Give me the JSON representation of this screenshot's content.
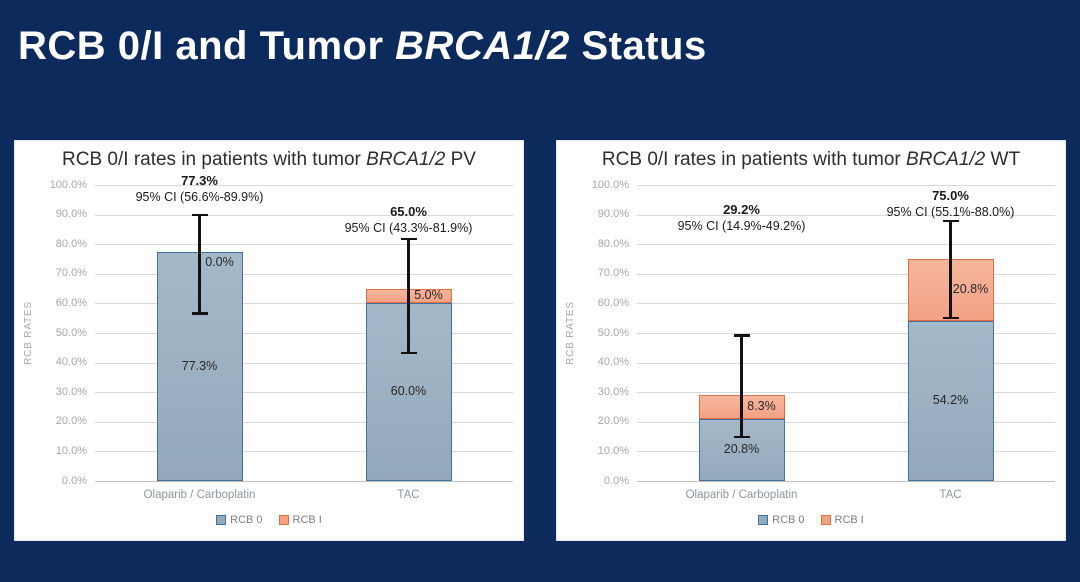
{
  "slide": {
    "title": {
      "prefix": "RCB 0/I and Tumor ",
      "italic": "BRCA1/2",
      "suffix": " Status"
    },
    "background_color": "#0d2a5c",
    "title_color": "#ffffff"
  },
  "chart_data": [
    {
      "type": "bar",
      "stacked": true,
      "title": {
        "prefix": "RCB 0/I rates in patients with tumor ",
        "italic": "BRCA1/2",
        "suffix": " PV"
      },
      "ylabel": "RCB RATES",
      "ylim": [
        0,
        100
      ],
      "yticks": [
        "0.0%",
        "10.0%",
        "20.0%",
        "30.0%",
        "40.0%",
        "50.0%",
        "60.0%",
        "70.0%",
        "80.0%",
        "90.0%",
        "100.0%"
      ],
      "grid": true,
      "legend_position": "bottom",
      "categories": [
        "Olaparib / Carboplatin",
        "TAC"
      ],
      "series": [
        {
          "name": "RCB 0",
          "values": [
            77.3,
            60.0
          ],
          "labels": [
            "77.3%",
            "60.0%"
          ],
          "fill_top": "#a5b8c9",
          "fill": "#93a9bc",
          "border": "#41719c"
        },
        {
          "name": "RCB I",
          "values": [
            0.0,
            5.0
          ],
          "labels": [
            "0.0%",
            "5.0%"
          ],
          "fill_top": "#f8b69e",
          "fill": "#f2a184",
          "border": "#e2703d"
        }
      ],
      "totals": [
        {
          "value": "77.3%",
          "ci": "95% CI (56.6%-89.9%)",
          "note_y": 101.3
        },
        {
          "value": "65.0%",
          "ci": "95% CI (43.3%-81.9%)",
          "note_y": 90.8
        }
      ],
      "error_bars": [
        {
          "low": 56.6,
          "high": 89.9
        },
        {
          "low": 43.3,
          "high": 81.9
        }
      ]
    },
    {
      "type": "bar",
      "stacked": true,
      "title": {
        "prefix": "RCB 0/I rates in patients with tumor ",
        "italic": "BRCA1/2",
        "suffix": " WT"
      },
      "ylabel": "RCB RATES",
      "ylim": [
        0,
        100
      ],
      "yticks": [
        "0.0%",
        "10.0%",
        "20.0%",
        "30.0%",
        "40.0%",
        "50.0%",
        "60.0%",
        "70.0%",
        "80.0%",
        "90.0%",
        "100.0%"
      ],
      "grid": true,
      "legend_position": "bottom",
      "categories": [
        "Olaparib / Carboplatin",
        "TAC"
      ],
      "series": [
        {
          "name": "RCB 0",
          "values": [
            20.8,
            54.2
          ],
          "labels": [
            "20.8%",
            "54.2%"
          ],
          "fill_top": "#a5b8c9",
          "fill": "#93a9bc",
          "border": "#41719c"
        },
        {
          "name": "RCB I",
          "values": [
            8.3,
            20.8
          ],
          "labels": [
            "8.3%",
            "20.8%"
          ],
          "fill_top": "#f8b69e",
          "fill": "#f2a184",
          "border": "#e2703d"
        }
      ],
      "totals": [
        {
          "value": "29.2%",
          "ci": "95% CI (14.9%-49.2%)",
          "note_y": 91.5
        },
        {
          "value": "75.0%",
          "ci": "95% CI (55.1%-88.0%)",
          "note_y": 96.3
        }
      ],
      "error_bars": [
        {
          "low": 14.9,
          "high": 49.2
        },
        {
          "low": 55.1,
          "high": 88.0
        }
      ]
    }
  ]
}
